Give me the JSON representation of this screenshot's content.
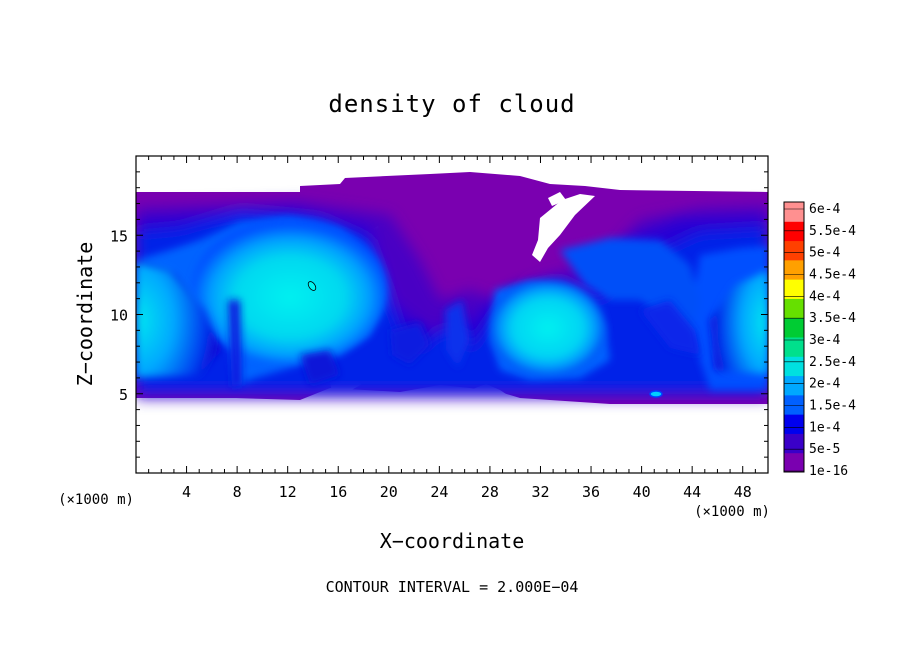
{
  "chart_data": {
    "type": "heatmap",
    "title": "density of cloud",
    "xlabel": "X−coordinate",
    "ylabel": "Z−coordinate",
    "x_unit": "(×1000 m)",
    "y_unit": "(×1000 m)",
    "xlim": [
      0,
      50
    ],
    "ylim": [
      0,
      20
    ],
    "x_ticks": [
      4,
      8,
      12,
      16,
      20,
      24,
      28,
      32,
      36,
      40,
      44,
      48
    ],
    "x_tick_labels": [
      "4",
      "8",
      "12",
      "16",
      "20",
      "24",
      "28",
      "32",
      "36",
      "40",
      "44",
      "48"
    ],
    "y_ticks": [
      5,
      10,
      15
    ],
    "y_tick_labels": [
      "5",
      "10",
      "15"
    ],
    "colorbar": {
      "labels": [
        "1e-16",
        "5e-5",
        "1e-4",
        "1.5e-4",
        "2e-4",
        "2.5e-4",
        "3e-4",
        "3.5e-4",
        "4e-4",
        "4.5e-4",
        "5e-4",
        "5.5e-4",
        "6e-4"
      ],
      "values": [
        1e-16,
        5e-05,
        0.0001,
        0.00015,
        0.0002,
        0.00025,
        0.0003,
        0.00035,
        0.0004,
        0.00045,
        0.0005,
        0.00055,
        0.0006
      ],
      "colors": [
        "#7a00b0",
        "#3a00c8",
        "#0000ee",
        "#0060ff",
        "#00a8ff",
        "#00e0e0",
        "#00e08c",
        "#00cc33",
        "#66e000",
        "#ffff00",
        "#ffa000",
        "#ff4000",
        "#ff0000",
        "#ff9090"
      ]
    },
    "cloud_band_z": [
      4.5,
      18.0
    ],
    "footer": "CONTOUR INTERVAL = 2.000E−04"
  }
}
